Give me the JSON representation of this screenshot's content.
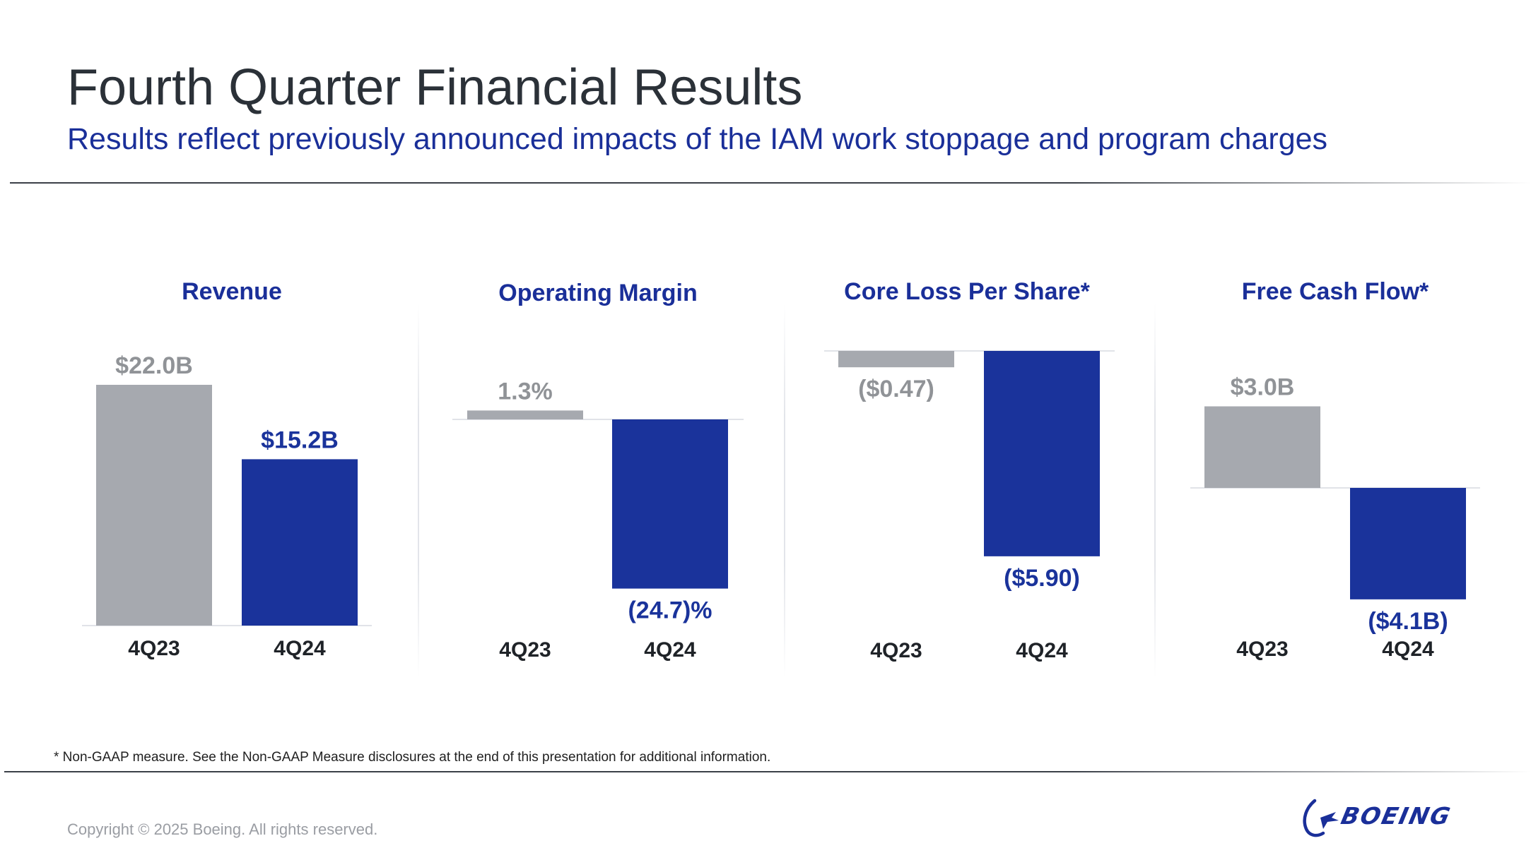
{
  "header": {
    "title": "Fourth Quarter Financial Results",
    "subtitle": "Results reflect previously announced impacts of the IAM work stoppage and program charges"
  },
  "colors": {
    "prior": "#a6a9af",
    "current": "#1a339b",
    "prior_label": "#909397",
    "current_label": "#1a339b",
    "heading": "#1a2f99",
    "axis_label": "#1f2328"
  },
  "chart_data": [
    {
      "type": "bar",
      "title": "Revenue",
      "categories": [
        "4Q23",
        "4Q24"
      ],
      "values": [
        22.0,
        15.2
      ],
      "value_labels": [
        "$22.0B",
        "$15.2B"
      ],
      "unit": "$B"
    },
    {
      "type": "bar",
      "title": "Operating Margin",
      "categories": [
        "4Q23",
        "4Q24"
      ],
      "values": [
        1.3,
        -24.7
      ],
      "value_labels": [
        "1.3%",
        "(24.7)%"
      ],
      "unit": "%"
    },
    {
      "type": "bar",
      "title": "Core Loss Per Share*",
      "categories": [
        "4Q23",
        "4Q24"
      ],
      "values": [
        -0.47,
        -5.9
      ],
      "value_labels": [
        "($0.47)",
        "($5.90)"
      ],
      "unit": "$"
    },
    {
      "type": "bar",
      "title": "Free Cash Flow*",
      "categories": [
        "4Q23",
        "4Q24"
      ],
      "values": [
        3.0,
        -4.1
      ],
      "value_labels": [
        "$3.0B",
        "($4.1B)"
      ],
      "unit": "$B"
    }
  ],
  "footer": {
    "footnote": "* Non-GAAP measure. See the Non-GAAP Measure disclosures at the end of this presentation for additional information.",
    "copyright": "Copyright © 2025 Boeing. All rights reserved.",
    "logo_text": "BOEING"
  }
}
